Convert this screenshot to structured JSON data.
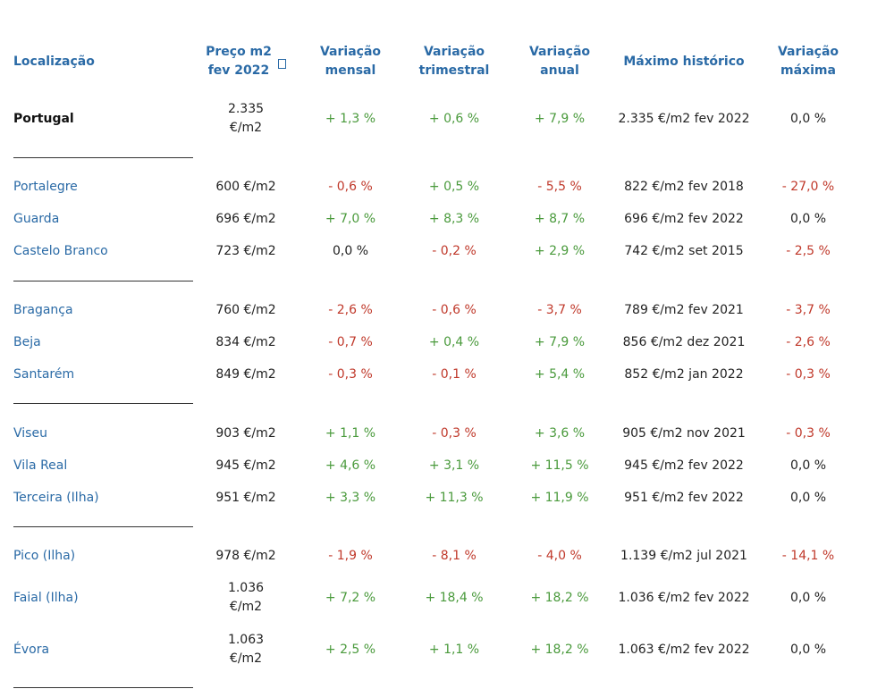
{
  "header": {
    "location": "Localização",
    "price_line1": "Preço m2",
    "price_line2": "fev 2022",
    "monthly_line1": "Variação",
    "monthly_line2": "mensal",
    "quarterly_line1": "Variação",
    "quarterly_line2": "trimestral",
    "annual_line1": "Variação",
    "annual_line2": "anual",
    "max_hist": "Máximo histórico",
    "max_var_line1": "Variação",
    "max_var_line2": "máxima"
  },
  "icons": {
    "price_info": "info-icon"
  },
  "colors": {
    "link": "#2a6aa6",
    "positive": "#4a9a3c",
    "negative": "#c0392b"
  },
  "rows": [
    {
      "loc": "Portugal",
      "bold": true,
      "price1": "2.335",
      "price2": "€/m2",
      "m": "+ 1,3 %",
      "t": "+ 0,6 %",
      "a": "+ 7,9 %",
      "max": "2.335 €/m2 fev 2022",
      "vm": "0,0 %"
    },
    {
      "loc": "Portalegre",
      "price": "600 €/m2",
      "m": "- 0,6 %",
      "t": "+ 0,5 %",
      "a": "- 5,5 %",
      "max": "822 €/m2 fev 2018",
      "vm": "- 27,0 %"
    },
    {
      "loc": "Guarda",
      "price": "696 €/m2",
      "m": "+ 7,0 %",
      "t": "+ 8,3 %",
      "a": "+ 8,7 %",
      "max": "696 €/m2 fev 2022",
      "vm": "0,0 %"
    },
    {
      "loc": "Castelo Branco",
      "price": "723 €/m2",
      "m": "0,0 %",
      "t": "- 0,2 %",
      "a": "+ 2,9 %",
      "max": "742 €/m2 set 2015",
      "vm": "- 2,5 %"
    },
    {
      "loc": "Bragança",
      "price": "760 €/m2",
      "m": "- 2,6 %",
      "t": "- 0,6 %",
      "a": "- 3,7 %",
      "max": "789 €/m2 fev 2021",
      "vm": "- 3,7 %"
    },
    {
      "loc": "Beja",
      "price": "834 €/m2",
      "m": "- 0,7 %",
      "t": "+ 0,4 %",
      "a": "+ 7,9 %",
      "max": "856 €/m2 dez 2021",
      "vm": "- 2,6 %"
    },
    {
      "loc": "Santarém",
      "price": "849 €/m2",
      "m": "- 0,3 %",
      "t": "- 0,1 %",
      "a": "+ 5,4 %",
      "max": "852 €/m2 jan 2022",
      "vm": "- 0,3 %"
    },
    {
      "loc": "Viseu",
      "price": "903 €/m2",
      "m": "+ 1,1 %",
      "t": "- 0,3 %",
      "a": "+ 3,6 %",
      "max": "905 €/m2 nov 2021",
      "vm": "- 0,3 %"
    },
    {
      "loc": "Vila Real",
      "price": "945 €/m2",
      "m": "+ 4,6 %",
      "t": "+ 3,1 %",
      "a": "+ 11,5 %",
      "max": "945 €/m2 fev 2022",
      "vm": "0,0 %"
    },
    {
      "loc": "Terceira (Ilha)",
      "price": "951 €/m2",
      "m": "+ 3,3 %",
      "t": "+ 11,3 %",
      "a": "+ 11,9 %",
      "max": "951 €/m2 fev 2022",
      "vm": "0,0 %"
    },
    {
      "loc": "Pico (Ilha)",
      "price": "978 €/m2",
      "m": "- 1,9 %",
      "t": "- 8,1 %",
      "a": "- 4,0 %",
      "max": "1.139 €/m2 jul 2021",
      "vm": "- 14,1 %"
    },
    {
      "loc": "Faial (Ilha)",
      "price1": "1.036",
      "price2": "€/m2",
      "m": "+ 7,2 %",
      "t": "+ 18,4 %",
      "a": "+ 18,2 %",
      "max": "1.036 €/m2 fev 2022",
      "vm": "0,0 %"
    },
    {
      "loc": "Évora",
      "price1": "1.063",
      "price2": "€/m2",
      "m": "+ 2,5 %",
      "t": "+ 1,1 %",
      "a": "+ 18,2 %",
      "max": "1.063 €/m2 fev 2022",
      "vm": "0,0 %"
    }
  ]
}
